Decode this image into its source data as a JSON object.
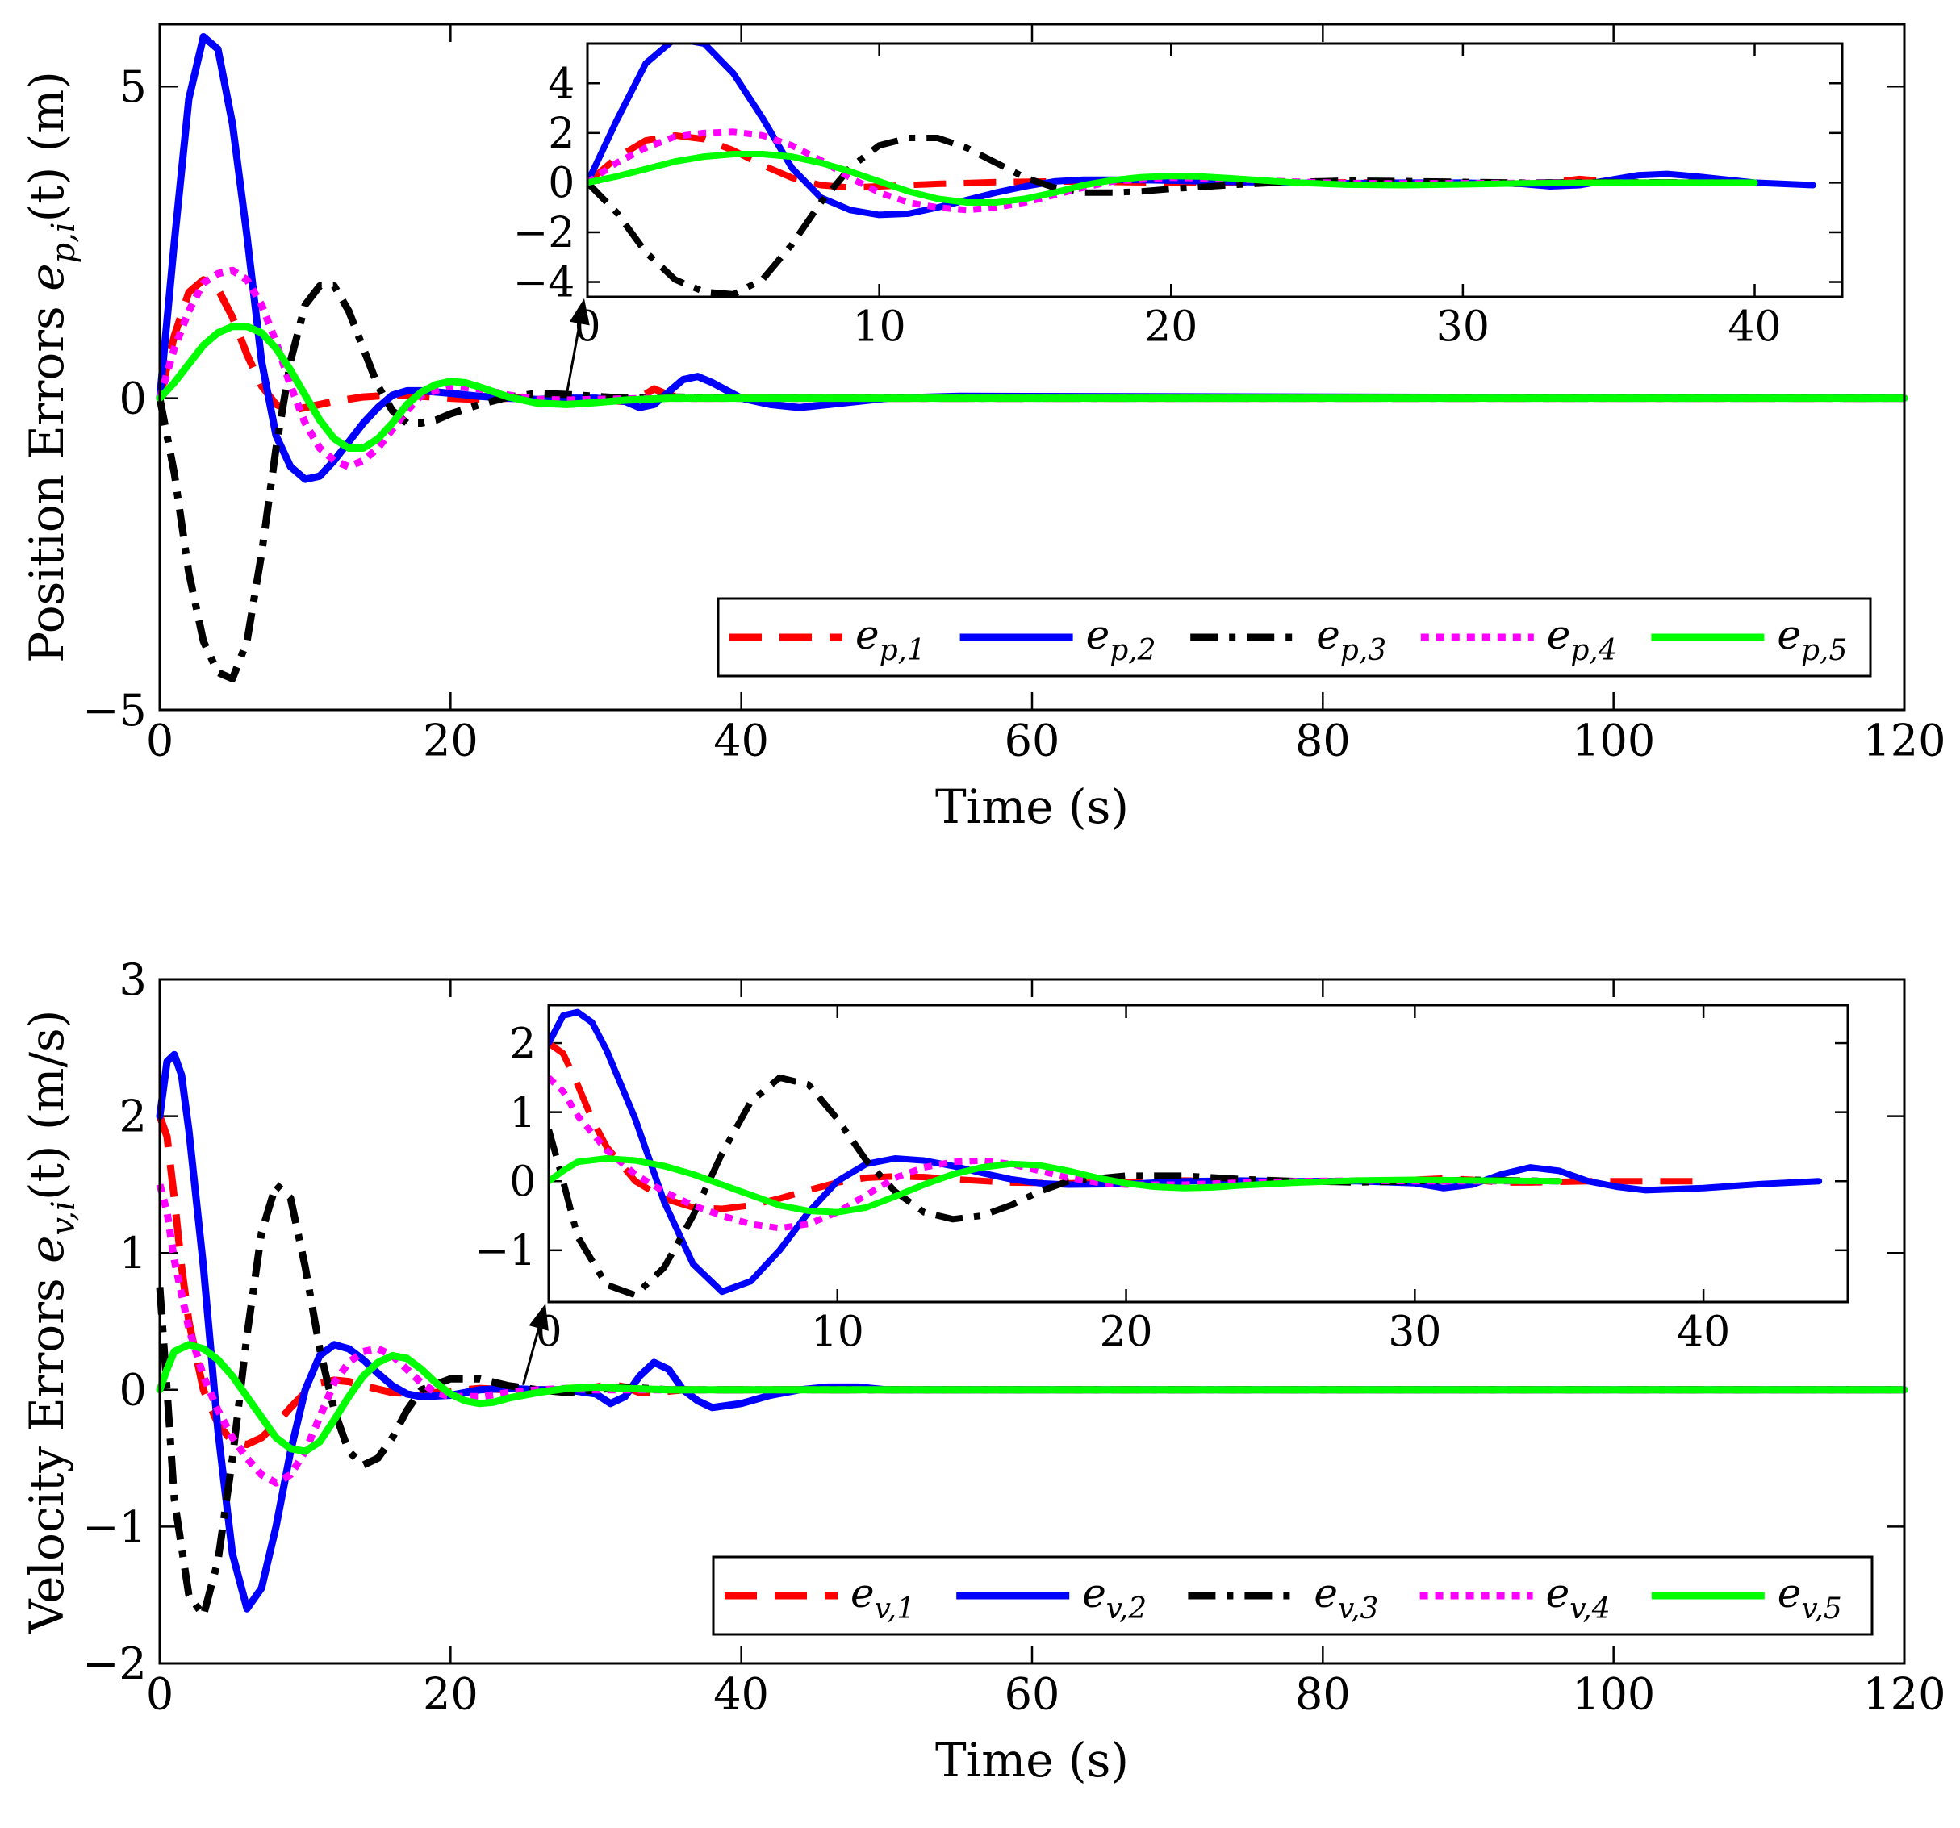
{
  "chart_data": [
    {
      "type": "line",
      "panel": "position",
      "xlabel": "Time (s)",
      "ylabel_prefix": "Position Errors ",
      "ylabel_var": "e",
      "ylabel_sub": "p,i",
      "ylabel_suffix": "(t) (m)",
      "xlim": [
        0,
        120
      ],
      "ylim": [
        -5,
        6
      ],
      "xticks": [
        "0",
        "20",
        "40",
        "60",
        "80",
        "100",
        "120"
      ],
      "yticks": [
        "−5",
        "0",
        "5"
      ],
      "legend_position": "bottom-right",
      "series": [
        {
          "name": "e",
          "sub": "p,1",
          "color": "#ff0000",
          "style": "dashed",
          "x": [
            0,
            1,
            2,
            3,
            4,
            5,
            6,
            7,
            8,
            9,
            10,
            12,
            14,
            16,
            18,
            20,
            22,
            24,
            26,
            28,
            30,
            32,
            33,
            34,
            35,
            36,
            40,
            120
          ],
          "y": [
            0,
            1.0,
            1.7,
            1.9,
            1.75,
            1.3,
            0.7,
            0.2,
            -0.1,
            -0.2,
            -0.15,
            -0.05,
            0.02,
            0.05,
            0.03,
            0.0,
            -0.02,
            0.0,
            0.01,
            0.0,
            -0.03,
            -0.05,
            0.0,
            0.15,
            0.05,
            0.0,
            0.0,
            0.0
          ]
        },
        {
          "name": "e",
          "sub": "p,2",
          "color": "#0000ff",
          "style": "solid",
          "x": [
            0,
            1,
            2,
            3,
            4,
            5,
            6,
            7,
            8,
            9,
            10,
            11,
            12,
            13,
            14,
            15,
            16,
            17,
            18,
            20,
            22,
            24,
            26,
            28,
            30,
            32,
            33,
            34,
            35,
            36,
            37,
            38,
            40,
            42,
            44,
            46,
            50,
            55,
            120
          ],
          "y": [
            0,
            2.5,
            4.8,
            5.8,
            5.6,
            4.4,
            2.6,
            0.6,
            -0.6,
            -1.1,
            -1.3,
            -1.25,
            -1.0,
            -0.7,
            -0.4,
            -0.15,
            0.05,
            0.12,
            0.12,
            0.08,
            0.03,
            0.0,
            -0.02,
            0.0,
            0.0,
            -0.05,
            -0.15,
            -0.1,
            0.1,
            0.3,
            0.35,
            0.25,
            0.0,
            -0.1,
            -0.15,
            -0.1,
            0.0,
            0.03,
            0.0
          ]
        },
        {
          "name": "e",
          "sub": "p,3",
          "color": "#000000",
          "style": "dashdot",
          "x": [
            0,
            1,
            2,
            3,
            4,
            5,
            6,
            7,
            8,
            9,
            10,
            11,
            12,
            13,
            14,
            15,
            16,
            17,
            18,
            19,
            20,
            22,
            24,
            26,
            28,
            30,
            32,
            35,
            40,
            120
          ],
          "y": [
            0,
            -1.2,
            -2.8,
            -3.9,
            -4.4,
            -4.5,
            -3.9,
            -2.5,
            -0.8,
            0.6,
            1.5,
            1.8,
            1.8,
            1.4,
            0.8,
            0.2,
            -0.2,
            -0.4,
            -0.4,
            -0.35,
            -0.25,
            -0.1,
            0.02,
            0.08,
            0.06,
            0.03,
            0.0,
            0.02,
            0.0,
            0.0
          ]
        },
        {
          "name": "e",
          "sub": "p,4",
          "color": "#ff00ff",
          "style": "dotted",
          "x": [
            0,
            1,
            2,
            3,
            4,
            5,
            6,
            7,
            8,
            9,
            10,
            11,
            12,
            13,
            14,
            15,
            16,
            17,
            18,
            20,
            22,
            24,
            26,
            28,
            30,
            35,
            40,
            120
          ],
          "y": [
            0,
            0.8,
            1.4,
            1.85,
            2.0,
            2.05,
            1.9,
            1.5,
            0.9,
            0.2,
            -0.4,
            -0.8,
            -1.0,
            -1.1,
            -1.0,
            -0.8,
            -0.5,
            -0.2,
            0.05,
            0.2,
            0.15,
            0.05,
            -0.02,
            -0.03,
            -0.02,
            0.0,
            0.0,
            0.0
          ]
        },
        {
          "name": "e",
          "sub": "p,5",
          "color": "#00ff00",
          "style": "solid",
          "x": [
            0,
            1,
            2,
            3,
            4,
            5,
            6,
            7,
            8,
            9,
            10,
            11,
            12,
            13,
            14,
            15,
            16,
            17,
            18,
            19,
            20,
            21,
            22,
            23,
            24,
            26,
            28,
            30,
            32,
            35,
            40,
            120
          ],
          "y": [
            0,
            0.25,
            0.55,
            0.85,
            1.05,
            1.15,
            1.15,
            1.05,
            0.8,
            0.45,
            0.05,
            -0.35,
            -0.65,
            -0.8,
            -0.8,
            -0.65,
            -0.4,
            -0.1,
            0.1,
            0.22,
            0.27,
            0.25,
            0.18,
            0.1,
            0.02,
            -0.08,
            -0.1,
            -0.07,
            -0.03,
            0.0,
            0.0,
            0.0
          ]
        }
      ],
      "inset": {
        "xlim": [
          0,
          43
        ],
        "ylim": [
          -4.6,
          5.6
        ],
        "xticks": [
          "0",
          "10",
          "20",
          "30",
          "40"
        ],
        "yticks": [
          "4",
          "2",
          "0",
          "−2",
          "−4"
        ],
        "zoom_source_x": 28
      }
    },
    {
      "type": "line",
      "panel": "velocity",
      "xlabel": "Time (s)",
      "ylabel_prefix": "Velocity Errors ",
      "ylabel_var": "e",
      "ylabel_sub": "v,i",
      "ylabel_suffix": "(t) (m/s)",
      "xlim": [
        0,
        120
      ],
      "ylim": [
        -2,
        3
      ],
      "xticks": [
        "0",
        "20",
        "40",
        "60",
        "80",
        "100",
        "120"
      ],
      "yticks": [
        "−2",
        "−1",
        "0",
        "1",
        "2",
        "3"
      ],
      "legend_position": "bottom-right",
      "series": [
        {
          "name": "e",
          "sub": "v,1",
          "color": "#ff0000",
          "style": "dashed",
          "x": [
            0,
            0.5,
            1,
            1.5,
            2,
            3,
            4,
            5,
            6,
            7,
            8,
            9,
            10,
            11,
            12,
            13,
            14,
            16,
            18,
            20,
            22,
            24,
            26,
            28,
            30,
            31,
            32,
            33,
            34,
            36,
            40,
            120
          ],
          "y": [
            2.0,
            1.85,
            1.4,
            0.9,
            0.5,
            0.0,
            -0.25,
            -0.38,
            -0.4,
            -0.35,
            -0.25,
            -0.13,
            -0.02,
            0.05,
            0.07,
            0.06,
            0.03,
            -0.02,
            -0.03,
            -0.01,
            0.01,
            0.0,
            0.0,
            0.0,
            0.02,
            0.04,
            0.02,
            -0.02,
            -0.02,
            0.0,
            0.0,
            0.0
          ]
        },
        {
          "name": "e",
          "sub": "v,2",
          "color": "#0000ff",
          "style": "solid",
          "x": [
            0,
            0.5,
            1,
            1.5,
            2,
            3,
            4,
            5,
            6,
            7,
            8,
            9,
            10,
            11,
            12,
            13,
            14,
            15,
            16,
            17,
            18,
            20,
            22,
            24,
            26,
            28,
            30,
            31,
            32,
            33,
            34,
            35,
            36,
            37,
            38,
            40,
            42,
            44,
            46,
            48,
            50,
            120
          ],
          "y": [
            2.0,
            2.4,
            2.45,
            2.3,
            1.9,
            0.9,
            -0.3,
            -1.2,
            -1.6,
            -1.45,
            -1.0,
            -0.45,
            0.0,
            0.25,
            0.33,
            0.3,
            0.22,
            0.12,
            0.03,
            -0.03,
            -0.05,
            -0.04,
            0.0,
            0.01,
            0.0,
            0.0,
            -0.03,
            -0.1,
            -0.05,
            0.1,
            0.2,
            0.15,
            0.0,
            -0.08,
            -0.13,
            -0.1,
            -0.04,
            0.0,
            0.02,
            0.02,
            0.0,
            0.0
          ]
        },
        {
          "name": "e",
          "sub": "v,3",
          "color": "#000000",
          "style": "dashdot",
          "x": [
            0,
            0.5,
            1,
            2,
            3,
            4,
            5,
            6,
            7,
            8,
            9,
            10,
            11,
            12,
            13,
            14,
            15,
            16,
            17,
            18,
            20,
            22,
            24,
            26,
            28,
            30,
            32,
            35,
            120
          ],
          "y": [
            0.75,
            0.0,
            -0.8,
            -1.5,
            -1.65,
            -1.25,
            -0.5,
            0.4,
            1.15,
            1.5,
            1.4,
            0.9,
            0.3,
            -0.15,
            -0.45,
            -0.55,
            -0.5,
            -0.35,
            -0.15,
            0.0,
            0.08,
            0.08,
            0.03,
            0.0,
            -0.02,
            0.0,
            0.02,
            0.0,
            0.0
          ]
        },
        {
          "name": "e",
          "sub": "v,4",
          "color": "#ff00ff",
          "style": "dotted",
          "x": [
            0,
            0.5,
            1,
            2,
            3,
            4,
            5,
            6,
            7,
            8,
            9,
            10,
            11,
            12,
            13,
            14,
            15,
            16,
            17,
            18,
            19,
            20,
            22,
            24,
            26,
            28,
            30,
            35,
            120
          ],
          "y": [
            1.5,
            1.3,
            0.95,
            0.45,
            0.1,
            -0.15,
            -0.35,
            -0.5,
            -0.62,
            -0.68,
            -0.62,
            -0.45,
            -0.2,
            0.05,
            0.2,
            0.28,
            0.3,
            0.25,
            0.15,
            0.05,
            -0.02,
            -0.05,
            -0.05,
            -0.02,
            0.0,
            0.01,
            0.0,
            0.0,
            0.0
          ]
        },
        {
          "name": "e",
          "sub": "v,5",
          "color": "#00ff00",
          "style": "solid",
          "x": [
            0,
            0.5,
            1,
            2,
            3,
            4,
            5,
            6,
            7,
            8,
            9,
            10,
            11,
            12,
            13,
            14,
            15,
            16,
            17,
            18,
            19,
            20,
            21,
            22,
            23,
            24,
            26,
            28,
            30,
            32,
            35,
            120
          ],
          "y": [
            0.0,
            0.15,
            0.28,
            0.33,
            0.3,
            0.22,
            0.1,
            -0.05,
            -0.2,
            -0.35,
            -0.43,
            -0.45,
            -0.38,
            -0.22,
            -0.05,
            0.1,
            0.2,
            0.25,
            0.23,
            0.15,
            0.05,
            -0.03,
            -0.08,
            -0.1,
            -0.09,
            -0.06,
            -0.02,
            0.01,
            0.02,
            0.01,
            0.0,
            0.0
          ]
        }
      ],
      "inset": {
        "xlim": [
          0,
          45
        ],
        "ylim": [
          -1.75,
          2.55
        ],
        "xticks": [
          "0",
          "10",
          "20",
          "30",
          "40"
        ],
        "yticks": [
          "2",
          "1",
          "0",
          "−1"
        ],
        "zoom_source_x": 25
      }
    }
  ]
}
